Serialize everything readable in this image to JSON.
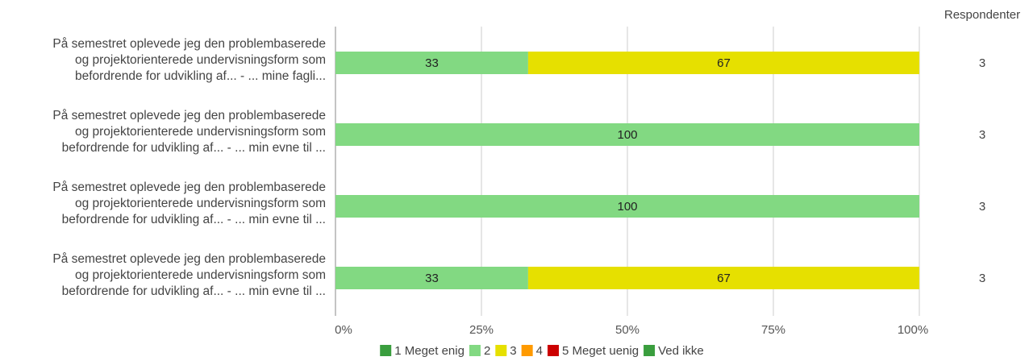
{
  "chart_data": {
    "type": "bar",
    "orientation": "horizontal",
    "stacked": "percent",
    "categories": [
      [
        "På semestret oplevede jeg den problembaserede",
        "og projektorienterede undervisningsform som",
        "befordrende for udvikling af... - ... mine fagli..."
      ],
      [
        "På semestret oplevede jeg den problembaserede",
        "og projektorienterede undervisningsform som",
        "befordrende for udvikling af... - ... min evne til ..."
      ],
      [
        "På semestret oplevede jeg den problembaserede",
        "og projektorienterede undervisningsform som",
        "befordrende for udvikling af... - ... min evne til ..."
      ],
      [
        "På semestret oplevede jeg den problembaserede",
        "og projektorienterede undervisningsform som",
        "befordrende for udvikling af... - ... min evne til ..."
      ]
    ],
    "series": [
      {
        "name": "1 Meget enig",
        "color": "#3a9e3e",
        "values": [
          0,
          0,
          0,
          0
        ]
      },
      {
        "name": "2",
        "color": "#82d982",
        "values": [
          33,
          100,
          100,
          33
        ]
      },
      {
        "name": "3",
        "color": "#e6e000",
        "values": [
          67,
          0,
          0,
          67
        ]
      },
      {
        "name": "4",
        "color": "#ff9a00",
        "values": [
          0,
          0,
          0,
          0
        ]
      },
      {
        "name": "5 Meget uenig",
        "color": "#cc0000",
        "values": [
          0,
          0,
          0,
          0
        ]
      },
      {
        "name": "Ved ikke",
        "color": "#3a9e3e",
        "values": [
          0,
          0,
          0,
          0
        ]
      }
    ],
    "xlim": [
      0,
      100
    ],
    "x_ticks": [
      "0%",
      "25%",
      "50%",
      "75%",
      "100%"
    ],
    "grid": true,
    "legend_position": "bottom",
    "respondents_header": "Respondenter",
    "respondents": [
      "3",
      "3",
      "3",
      "3"
    ]
  }
}
